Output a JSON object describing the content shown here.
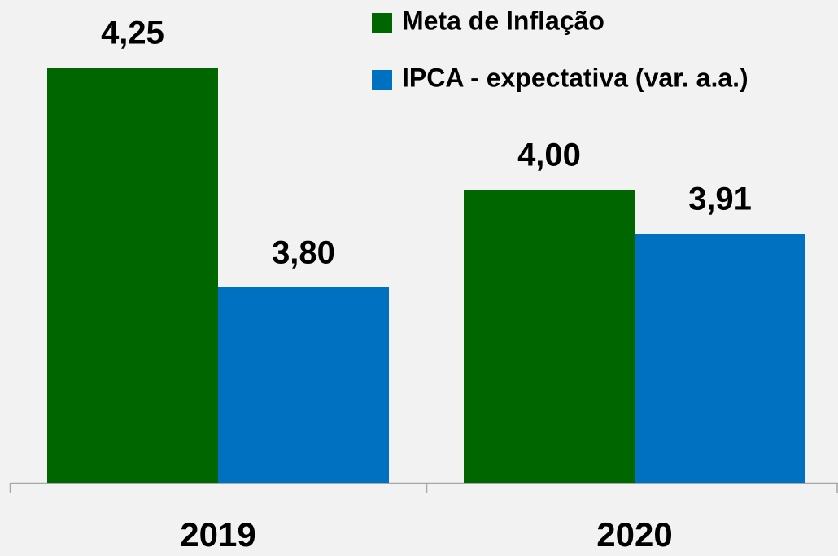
{
  "chart_data": {
    "type": "bar",
    "categories": [
      "2019",
      "2020"
    ],
    "series": [
      {
        "name": "Meta de Inflação",
        "color": "#006600",
        "values": [
          4.25,
          4.0
        ],
        "value_labels": [
          "4,25",
          "4,00"
        ]
      },
      {
        "name": "IPCA - expectativa (var. a.a.)",
        "color": "#0070c0",
        "values": [
          3.8,
          3.91
        ],
        "value_labels": [
          "3,80",
          "3,91"
        ]
      }
    ],
    "ylim": [
      3.4,
      4.4
    ],
    "legend": "top-right"
  }
}
